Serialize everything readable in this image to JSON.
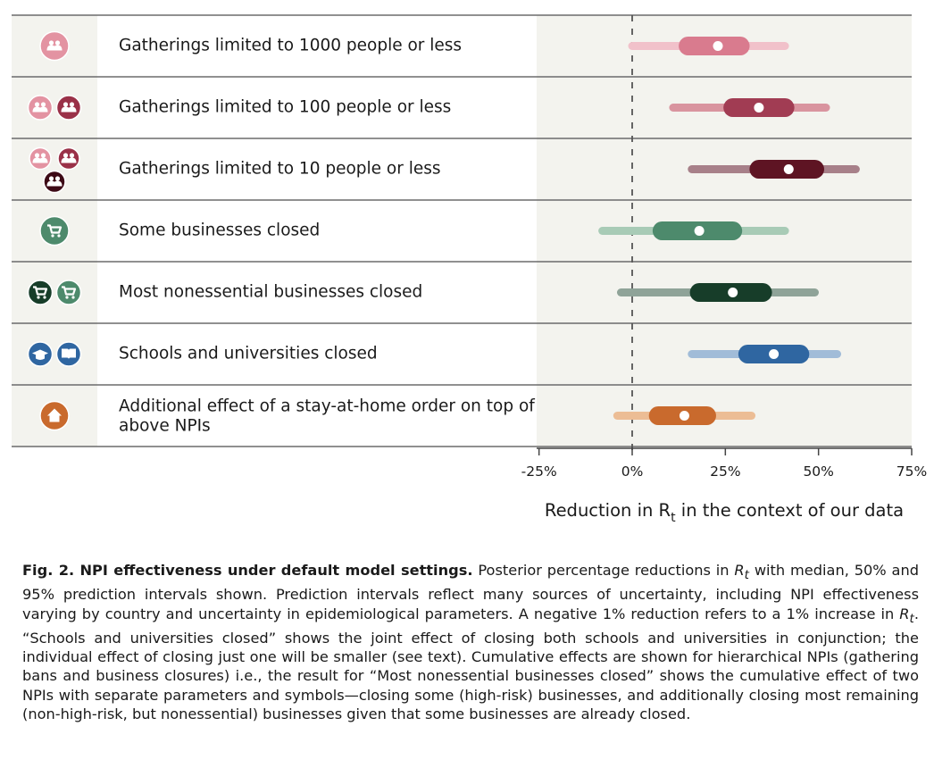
{
  "chart_data": {
    "type": "forest",
    "xlabel": "Reduction in R",
    "xlabel_sub": "t",
    "xlabel_suffix": " in the context of our data",
    "xlim": [
      -25,
      75
    ],
    "xticks": [
      -25,
      0,
      25,
      50,
      75
    ],
    "xtick_labels": [
      "-25%",
      "0%",
      "25%",
      "50%",
      "75%"
    ],
    "reference_line": 0,
    "rows": [
      {
        "label": "Gatherings limited to 1000 people or less",
        "median": 23,
        "ci50": [
          15,
          29
        ],
        "ci95": [
          0,
          41
        ],
        "color_dark": "#d97b8e",
        "color_light": "#f1c1ca",
        "icons": [
          {
            "name": "people-icon",
            "color": "#e393a2"
          }
        ]
      },
      {
        "label": "Gatherings limited to 100 people or less",
        "median": 34,
        "ci50": [
          27,
          41
        ],
        "ci95": [
          11,
          52
        ],
        "color_dark": "#a13c53",
        "color_light": "#d9949f",
        "icons": [
          {
            "name": "people-icon",
            "color": "#e393a2"
          },
          {
            "name": "people-icon",
            "color": "#9a3148"
          }
        ]
      },
      {
        "label": "Gatherings limited to 10 people or less",
        "median": 42,
        "ci50": [
          34,
          49
        ],
        "ci95": [
          16,
          60
        ],
        "color_dark": "#5e1423",
        "color_light": "#a78089",
        "icons": [
          {
            "name": "people-icon",
            "color": "#e393a2"
          },
          {
            "name": "people-icon",
            "color": "#9a3148"
          },
          {
            "name": "people-icon",
            "color": "#3d0a16"
          }
        ]
      },
      {
        "label": "Some businesses closed",
        "median": 18,
        "ci50": [
          8,
          27
        ],
        "ci95": [
          -8,
          41
        ],
        "color_dark": "#4d8a6c",
        "color_light": "#a8cbb6",
        "icons": [
          {
            "name": "shopping-cart-icon",
            "color": "#4d8a6c"
          }
        ]
      },
      {
        "label": "Most nonessential businesses closed",
        "median": 27,
        "ci50": [
          18,
          35
        ],
        "ci95": [
          -3,
          49
        ],
        "color_dark": "#173d29",
        "color_light": "#8fa398",
        "icons": [
          {
            "name": "shopping-cart-icon",
            "color": "#173d29"
          },
          {
            "name": "shopping-cart-icon",
            "color": "#4d8a6c"
          }
        ]
      },
      {
        "label": "Schools and universities closed",
        "median": 38,
        "ci50": [
          31,
          45
        ],
        "ci95": [
          16,
          55
        ],
        "color_dark": "#2f66a1",
        "color_light": "#a1bcd8",
        "icons": [
          {
            "name": "graduation-cap-icon",
            "color": "#2f66a1"
          },
          {
            "name": "book-icon",
            "color": "#2f66a1"
          }
        ]
      },
      {
        "label": "Additional effect of a stay-at-home order on top of above NPIs",
        "median": 14,
        "ci50": [
          7,
          20
        ],
        "ci95": [
          -4,
          32
        ],
        "color_dark": "#c96a2d",
        "color_light": "#ecbd95",
        "icons": [
          {
            "name": "house-icon",
            "color": "#c96a2d"
          }
        ]
      }
    ]
  },
  "caption": {
    "title": "Fig. 2. NPI effectiveness under default model settings.",
    "p1": " Posterior percentage reductions in ",
    "rt1": "R",
    "sub1": "t",
    "p2": " with median, 50% and 95% prediction intervals shown. Prediction intervals reflect many sources of uncertainty, including NPI effectiveness varying by country and uncertainty in epidemiological parameters. A negative 1% reduction refers to a 1% increase in ",
    "rt2": "R",
    "sub2": "t",
    "p3": ". “Schools and universities closed” shows the joint effect of closing both schools and universities in conjunction; the individual effect of closing just one will be smaller (see text). Cumulative effects are shown for hierarchical NPIs (gathering bans and business closures) i.e., the result for “Most nonessential businesses closed” shows the cumulative effect of two NPIs with separate parameters and symbols—closing some (high-risk) businesses, and additionally closing most remaining (non-high-risk, but nonessential) businesses given that some businesses are already closed."
  }
}
